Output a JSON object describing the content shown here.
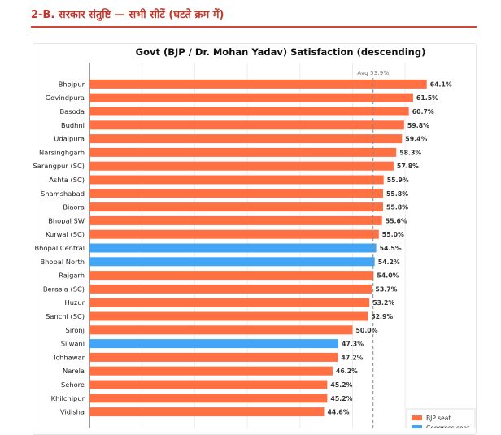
{
  "section": {
    "title": "2-B. सरकार संतुष्टि — सभी सीटें (घटते क्रम में)"
  },
  "chart_data": {
    "type": "bar",
    "orientation": "horizontal",
    "title": "Govt (BJP / Dr. Mohan Yadav) Satisfaction (descending)",
    "xlim": [
      0,
      66
    ],
    "grid": true,
    "categories": [
      "Bhojpur",
      "Govindpura",
      "Basoda",
      "Budhni",
      "Udaipura",
      "Narsinghgarh",
      "Sarangpur (SC)",
      "Ashta (SC)",
      "Shamshabad",
      "Biaora",
      "Bhopal SW",
      "Kurwai (SC)",
      "Bhopal Central",
      "Bhopal North",
      "Rajgarh",
      "Berasia (SC)",
      "Huzur",
      "Sanchi (SC)",
      "Sironj",
      "Silwani",
      "Ichhawar",
      "Narela",
      "Sehore",
      "Khilchipur",
      "Vidisha"
    ],
    "values": [
      64.1,
      61.5,
      60.7,
      59.8,
      59.4,
      58.3,
      57.8,
      55.9,
      55.8,
      55.8,
      55.6,
      55.0,
      54.5,
      54.2,
      54.0,
      53.7,
      53.2,
      52.9,
      50.0,
      47.3,
      47.2,
      46.2,
      45.2,
      45.2,
      44.6
    ],
    "value_labels": [
      "64.1%",
      "61.5%",
      "60.7%",
      "59.8%",
      "59.4%",
      "58.3%",
      "57.8%",
      "55.9%",
      "55.8%",
      "55.8%",
      "55.6%",
      "55.0%",
      "54.5%",
      "54.2%",
      "54.0%",
      "53.7%",
      "53.2%",
      "52.9%",
      "50.0%",
      "47.3%",
      "47.2%",
      "46.2%",
      "45.2%",
      "45.2%",
      "44.6%"
    ],
    "party": [
      "BJP",
      "BJP",
      "BJP",
      "BJP",
      "BJP",
      "BJP",
      "BJP",
      "BJP",
      "BJP",
      "BJP",
      "BJP",
      "BJP",
      "Congress",
      "Congress",
      "BJP",
      "BJP",
      "BJP",
      "BJP",
      "BJP",
      "Congress",
      "BJP",
      "BJP",
      "BJP",
      "BJP",
      "BJP"
    ],
    "average": {
      "value": 53.9,
      "label": "Avg 53.9%"
    },
    "colors": {
      "BJP": "#ff7043",
      "Congress": "#42a5f5",
      "average_line": "#888888"
    },
    "legend": {
      "placement": "bottom-right",
      "items": [
        {
          "key": "BJP",
          "label": "BJP seat"
        },
        {
          "key": "Congress",
          "label": "Congress seat"
        }
      ]
    }
  }
}
